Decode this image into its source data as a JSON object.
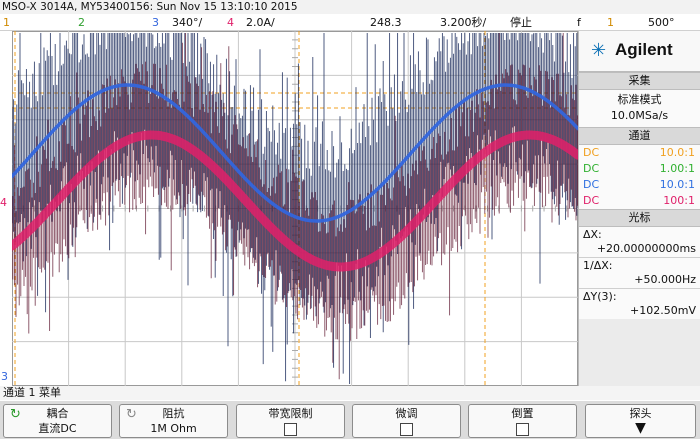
{
  "title": "MSO-X 3014A, MY53400156: Sun Nov 15 13:10:10 2015",
  "status": {
    "ch1_num": "1",
    "ch2_num": "2",
    "ch3_num": "3",
    "ch3_scale": "340°/",
    "ch4_num": "4",
    "ch4_scale": "2.0A/",
    "delay": "248.3",
    "timebase": "3.200秒/",
    "run_state": "停止",
    "trig_symbol": "f",
    "trig_src": "1",
    "trig_level": "500°"
  },
  "markers": {
    "ch4_ground": "4",
    "ch3_ground": "3"
  },
  "brand": {
    "logo_glyph": "✳",
    "name": "Agilent"
  },
  "acquire": {
    "header": "采集",
    "mode": "标准模式",
    "rate": "10.0MSa/s"
  },
  "channels": {
    "header": "通道",
    "rows": [
      {
        "coupling": "DC",
        "probe": "10.0:1",
        "color": "#f0a020"
      },
      {
        "coupling": "DC",
        "probe": "1.00:1",
        "color": "#30b030"
      },
      {
        "coupling": "DC",
        "probe": "10.0:1",
        "color": "#3070e0"
      },
      {
        "coupling": "DC",
        "probe": "100:1",
        "color": "#e0206a"
      }
    ]
  },
  "cursors": {
    "header": "光标",
    "dx_label": "ΔX:",
    "dx_value": "+20.00000000ms",
    "inv_label": "1/ΔX:",
    "inv_value": "+50.000Hz",
    "dy_label": "ΔY(3):",
    "dy_value": "+102.50mV"
  },
  "menu_caption": "通道 1 菜单",
  "softkeys": [
    {
      "title": "耦合",
      "value": "直流DC",
      "icon": "↻"
    },
    {
      "title": "阻抗",
      "value": "1M Ohm",
      "icon": "↻"
    },
    {
      "title": "带宽限制",
      "value": ""
    },
    {
      "title": "微调",
      "value": ""
    },
    {
      "title": "倒置",
      "value": ""
    },
    {
      "title": "探头",
      "value": "▼"
    }
  ],
  "colors": {
    "ch1": "#f0a020",
    "ch2": "#30b030",
    "ch3": "#3366dd",
    "ch4": "#e0206a",
    "ch3_envelope": "#1a2a5a",
    "ch4_envelope": "#5a0f2a"
  }
}
